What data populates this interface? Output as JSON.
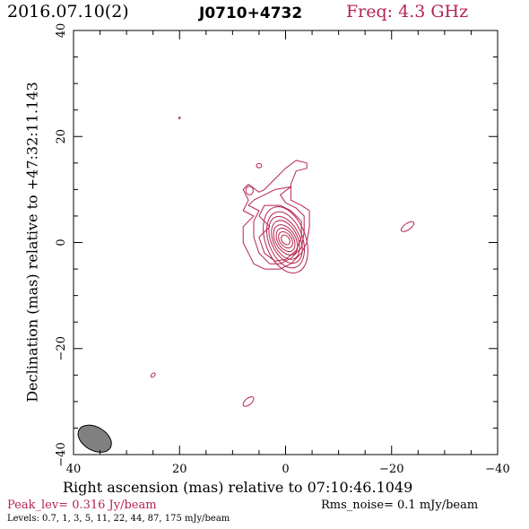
{
  "header": {
    "date": "2016.07.10(2)",
    "source": "J0710+4732",
    "freq": "Freq: 4.3 GHz"
  },
  "footer": {
    "peak": "Peak_lev=  0.316 Jy/beam",
    "rms": "Rms_noise=  0.1 mJy/beam",
    "levels": "Levels: 0.7,   1,   3,   5,   11,  22,  44,  87, 175 mJy/beam"
  },
  "colors": {
    "contour": "#b5234f",
    "accent": "#b5234f",
    "beam": "#808080"
  },
  "chart_data": {
    "type": "contour",
    "title": "",
    "xlabel": "Right ascension (mas) relative to 07:10:46.1049",
    "ylabel": "Declination (mas) relative to +47:32:11.143",
    "xlim": [
      40,
      -40
    ],
    "ylim": [
      -40,
      40
    ],
    "x_ticks": [
      40,
      20,
      0,
      -20,
      -40
    ],
    "y_ticks": [
      -40,
      -20,
      0,
      20,
      40
    ],
    "x_tick_labels": [
      "40",
      "20",
      "0",
      "−20",
      "−40"
    ],
    "y_tick_labels": [
      "−40",
      "−20",
      "0",
      "20",
      "40"
    ],
    "grid": false,
    "levels_mJy": [
      0.7,
      1,
      3,
      5,
      11,
      22,
      44,
      87,
      175
    ],
    "peak_Jy_per_beam": 0.316,
    "rms_mJy_per_beam": 0.1,
    "main_component": {
      "center": [
        0,
        0.5
      ],
      "contours": [
        {
          "rx": 3.8,
          "ry": 6.5,
          "angle": -20
        },
        {
          "rx": 3.2,
          "ry": 5.5,
          "angle": -20
        },
        {
          "rx": 2.7,
          "ry": 4.7,
          "angle": -25
        },
        {
          "rx": 2.3,
          "ry": 3.9,
          "angle": -25
        },
        {
          "rx": 1.9,
          "ry": 3.1,
          "angle": -30
        },
        {
          "rx": 1.5,
          "ry": 2.4,
          "angle": -30
        },
        {
          "rx": 1.1,
          "ry": 1.7,
          "angle": -35
        },
        {
          "rx": 0.7,
          "ry": 1.0,
          "angle": -35
        }
      ]
    },
    "outer_contours": [
      [
        [
          5,
          9.5
        ],
        [
          7,
          11
        ],
        [
          8,
          10
        ],
        [
          7,
          8
        ],
        [
          8,
          6
        ],
        [
          6,
          5
        ],
        [
          8,
          3
        ],
        [
          8,
          0
        ],
        [
          7,
          -2
        ],
        [
          6,
          -4
        ],
        [
          4,
          -5
        ],
        [
          1,
          -5
        ],
        [
          -1,
          -4
        ],
        [
          -3,
          -2
        ],
        [
          -4,
          0
        ],
        [
          -4.5,
          3
        ],
        [
          -4.5,
          6
        ],
        [
          -3,
          7
        ],
        [
          -1,
          8
        ],
        [
          -1,
          11
        ],
        [
          -2,
          13.5
        ],
        [
          -4,
          14
        ],
        [
          -4,
          15
        ],
        [
          -2,
          15.5
        ],
        [
          0,
          14
        ],
        [
          2,
          12
        ],
        [
          4,
          10
        ]
      ],
      [
        [
          6,
          8
        ],
        [
          7,
          7
        ],
        [
          5,
          6
        ],
        [
          6,
          4
        ],
        [
          6,
          1
        ],
        [
          5,
          -2
        ],
        [
          3,
          -4
        ],
        [
          1,
          -4
        ],
        [
          -1,
          -3
        ],
        [
          -3,
          -1
        ],
        [
          -3.5,
          2
        ],
        [
          -3.5,
          5
        ],
        [
          -2,
          6.5
        ],
        [
          0,
          7.5
        ],
        [
          1,
          9
        ],
        [
          -1,
          10.5
        ],
        [
          2,
          10
        ],
        [
          4,
          9
        ]
      ],
      [
        [
          4,
          7
        ],
        [
          5,
          5
        ],
        [
          3,
          3
        ],
        [
          5,
          1
        ],
        [
          4,
          -2
        ],
        [
          2,
          -3.5
        ],
        [
          0,
          -3.2
        ],
        [
          -2,
          -1.5
        ],
        [
          -3,
          1
        ],
        [
          -3,
          4
        ],
        [
          -1,
          6
        ],
        [
          1,
          7
        ]
      ]
    ],
    "islands": [
      {
        "x": 5,
        "y": 14.5,
        "rx": 0.5,
        "ry": 0.4,
        "angle": 0
      },
      {
        "x": 6.8,
        "y": 9.8,
        "rx": 0.7,
        "ry": 0.8,
        "angle": 0
      },
      {
        "x": -23,
        "y": 3,
        "rx": 1.4,
        "ry": 0.6,
        "angle": -35
      },
      {
        "x": 25,
        "y": -25,
        "rx": 0.5,
        "ry": 0.3,
        "angle": -45
      },
      {
        "x": 7,
        "y": -30,
        "rx": 1.2,
        "ry": 0.6,
        "angle": -40
      },
      {
        "x": 20,
        "y": 23.5,
        "rx": 0.15,
        "ry": 0.15,
        "angle": 0
      }
    ],
    "beam": {
      "x": 36,
      "y": -37,
      "major": 3.4,
      "minor": 2.2,
      "angle": -30
    }
  }
}
